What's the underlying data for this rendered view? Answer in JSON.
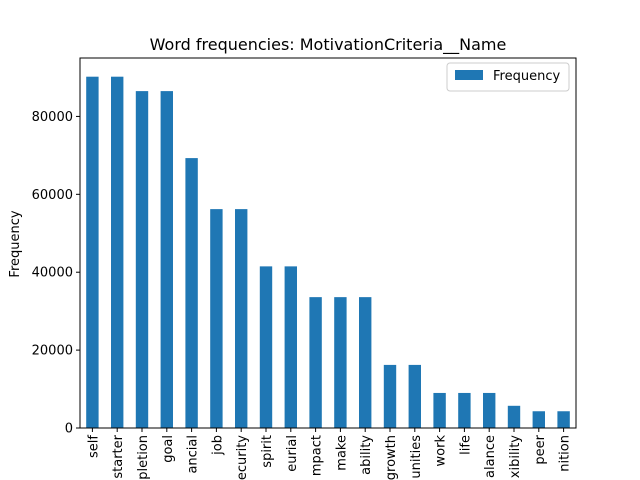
{
  "chart_data": {
    "type": "bar",
    "title": "Word frequencies: MotivationCriteria__Name",
    "xlabel": "",
    "ylabel": "Frequency",
    "legend": {
      "position": "top-right",
      "entries": [
        "Frequency"
      ]
    },
    "grid": false,
    "ylim": [
      0,
      95000
    ],
    "yticks": [
      0,
      20000,
      40000,
      60000,
      80000
    ],
    "categories": [
      "self",
      "starter",
      "pletion",
      "goal",
      "ancial",
      "job",
      "ecurity",
      "spirit",
      "eurial",
      "mpact",
      "make",
      "ability",
      "growth",
      "unities",
      "work",
      "life",
      "alance",
      "xibility",
      "peer",
      "nition"
    ],
    "series": [
      {
        "name": "Frequency",
        "color": "#1f77b4",
        "values": [
          90200,
          90200,
          86500,
          86500,
          69300,
          56200,
          56200,
          41500,
          41500,
          33600,
          33600,
          33600,
          16200,
          16200,
          9000,
          9000,
          9000,
          5700,
          4300,
          4300
        ]
      }
    ]
  }
}
